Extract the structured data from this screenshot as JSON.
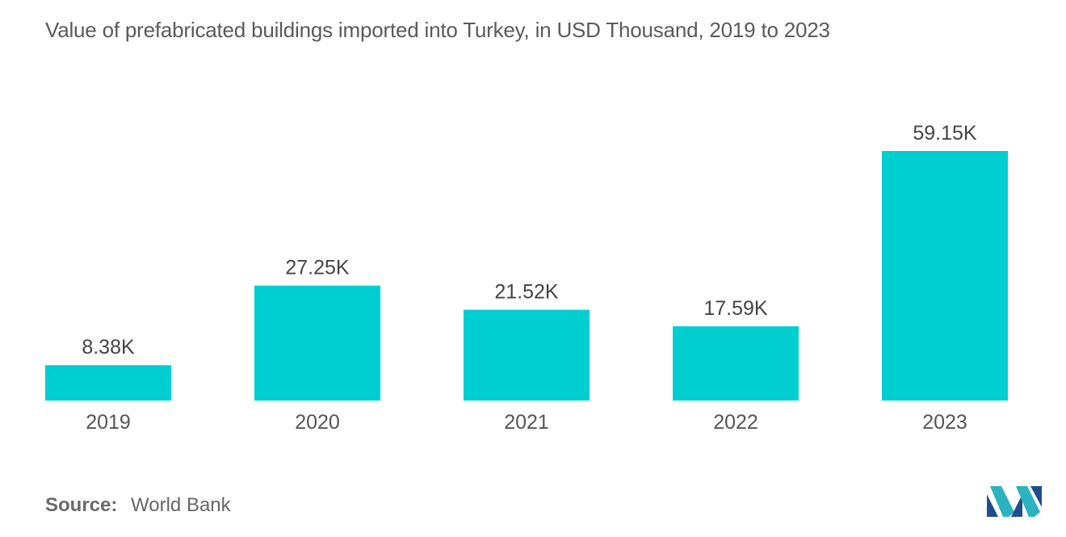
{
  "chart_data": {
    "type": "bar",
    "title": "Value of prefabricated buildings imported into Turkey, in USD Thousand, 2019 to 2023",
    "categories": [
      "2019",
      "2020",
      "2021",
      "2022",
      "2023"
    ],
    "values": [
      8.38,
      27.25,
      21.52,
      17.59,
      59.15
    ],
    "value_labels": [
      "8.38K",
      "27.25K",
      "21.52K",
      "17.59K",
      "59.15K"
    ],
    "xlabel": "",
    "ylabel": "",
    "ylim": [
      0,
      59.15
    ],
    "grid": false,
    "legend": "none",
    "bar_color": "#00CED1"
  },
  "source": {
    "label": "Source:",
    "value": "World Bank"
  },
  "logo": {
    "icon": "mordor-intelligence-logo",
    "colors": [
      "#1F4E8C",
      "#2BB3C0"
    ]
  }
}
